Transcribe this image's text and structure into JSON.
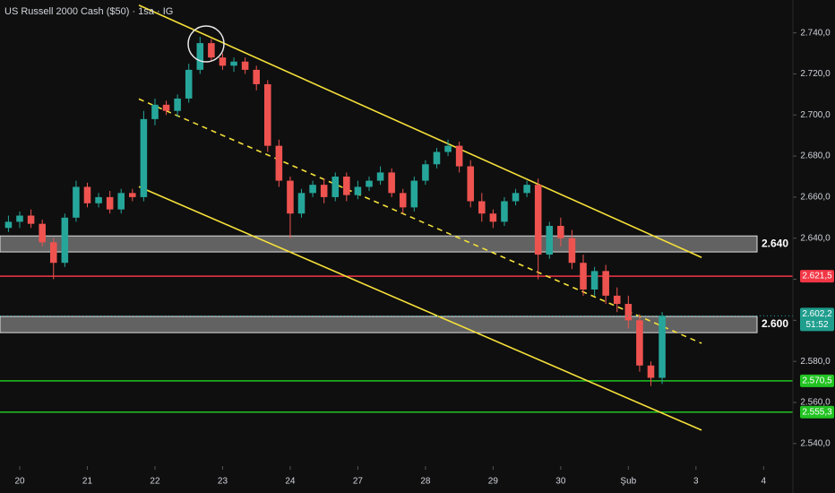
{
  "chart_data": {
    "type": "candlestick",
    "title": "US Russell 2000 Cash ($50) · 1sa · IG",
    "x": [
      -1,
      0,
      1,
      2,
      3,
      4,
      5,
      6,
      7,
      8,
      9,
      10,
      11,
      12,
      13,
      14,
      15,
      16,
      17,
      18,
      19,
      20,
      21,
      22,
      23,
      24,
      25,
      26,
      27,
      28,
      29,
      30,
      31,
      32,
      33,
      34,
      35,
      36,
      37,
      38,
      39,
      40,
      41,
      42,
      43,
      44,
      45,
      46,
      47,
      48,
      49,
      50,
      51,
      52,
      53,
      54,
      55,
      56,
      57
    ],
    "open": [
      2645,
      2648,
      2651,
      2647,
      2638,
      2628,
      2650,
      2665,
      2657,
      2660,
      2654,
      2662,
      2660,
      2698,
      2705,
      2702,
      2708,
      2722,
      2735,
      2728,
      2724,
      2726,
      2722,
      2715,
      2685,
      2668,
      2652,
      2662,
      2666,
      2660,
      2670,
      2661,
      2665,
      2668,
      2672,
      2662,
      2655,
      2668,
      2676,
      2682,
      2685,
      2675,
      2658,
      2652,
      2648,
      2658,
      2662,
      2666,
      2632,
      2646,
      2640,
      2628,
      2615,
      2624,
      2612,
      2608,
      2600,
      2578,
      2572
    ],
    "high": [
      2651,
      2653,
      2654,
      2649,
      2640,
      2652,
      2668,
      2667,
      2662,
      2663,
      2664,
      2664,
      2702,
      2708,
      2707,
      2710,
      2725,
      2738,
      2737,
      2730,
      2728,
      2728,
      2724,
      2717,
      2688,
      2670,
      2664,
      2668,
      2669,
      2672,
      2672,
      2668,
      2670,
      2675,
      2674,
      2664,
      2670,
      2678,
      2684,
      2688,
      2687,
      2678,
      2662,
      2654,
      2660,
      2664,
      2668,
      2669,
      2648,
      2650,
      2644,
      2632,
      2626,
      2627,
      2616,
      2612,
      2603,
      2580,
      2604
    ],
    "low": [
      2643,
      2645,
      2645,
      2636,
      2620,
      2626,
      2648,
      2655,
      2655,
      2652,
      2652,
      2658,
      2658,
      2695,
      2700,
      2699,
      2706,
      2720,
      2726,
      2722,
      2721,
      2720,
      2712,
      2682,
      2665,
      2640,
      2650,
      2660,
      2657,
      2658,
      2658,
      2659,
      2663,
      2666,
      2660,
      2652,
      2653,
      2666,
      2674,
      2680,
      2672,
      2655,
      2648,
      2645,
      2646,
      2656,
      2660,
      2620,
      2630,
      2636,
      2625,
      2612,
      2612,
      2608,
      2604,
      2596,
      2575,
      2568,
      2569
    ],
    "close": [
      2648,
      2651,
      2647,
      2638,
      2628,
      2650,
      2665,
      2657,
      2660,
      2654,
      2662,
      2660,
      2698,
      2705,
      2702,
      2708,
      2722,
      2735,
      2728,
      2724,
      2726,
      2722,
      2715,
      2685,
      2668,
      2652,
      2662,
      2666,
      2660,
      2670,
      2661,
      2665,
      2668,
      2672,
      2662,
      2655,
      2668,
      2676,
      2682,
      2685,
      2675,
      2658,
      2652,
      2648,
      2658,
      2662,
      2666,
      2632,
      2646,
      2640,
      2628,
      2615,
      2624,
      2612,
      2608,
      2600,
      2578,
      2572,
      2602.2
    ],
    "up_color": "#26a69a",
    "down_color": "#ef5350",
    "xlim": [
      -1.75,
      68.6
    ],
    "xticks": [
      {
        "value": 0,
        "label": "20"
      },
      {
        "value": 6,
        "label": "21"
      },
      {
        "value": 12,
        "label": "22"
      },
      {
        "value": 18,
        "label": "23"
      },
      {
        "value": 24,
        "label": "24"
      },
      {
        "value": 30,
        "label": "27"
      },
      {
        "value": 36,
        "label": "28"
      },
      {
        "value": 42,
        "label": "29"
      },
      {
        "value": 48,
        "label": "30"
      },
      {
        "value": 54,
        "label": "Şub"
      },
      {
        "value": 60,
        "label": "3"
      },
      {
        "value": 66,
        "label": "4"
      }
    ],
    "ylim": [
      2529,
      2756
    ],
    "yticks": [
      {
        "value": 2540,
        "label": "2.540,0"
      },
      {
        "value": 2560,
        "label": "2.560,0"
      },
      {
        "value": 2580,
        "label": "2.580,0"
      },
      {
        "value": 2600,
        "label": "2.600,0"
      },
      {
        "value": 2620,
        "label": "2.620,0"
      },
      {
        "value": 2640,
        "label": "2.640,0"
      },
      {
        "value": 2660,
        "label": "2.660,0"
      },
      {
        "value": 2680,
        "label": "2.680,0"
      },
      {
        "value": 2700,
        "label": "2.700,0"
      },
      {
        "value": 2720,
        "label": "2.720,0"
      },
      {
        "value": 2740,
        "label": "2.740,0"
      }
    ],
    "zones": [
      {
        "low": 2633.3,
        "high": 2641.1,
        "label": "2.640"
      },
      {
        "low": 2594,
        "high": 2601.9,
        "label": "2.600"
      }
    ],
    "levels": [
      {
        "value": 2621.5,
        "label": "2.621,5",
        "color": "#f23645"
      },
      {
        "value": 2570.5,
        "label": "2.570,5",
        "color": "#22c322"
      },
      {
        "value": 2555.3,
        "label": "2.555,3",
        "color": "#22c322"
      }
    ],
    "trendlines": [
      {
        "x": [
          10.57,
          60.5
        ],
        "y": [
          2753.5,
          2630.6
        ],
        "dashed": false
      },
      {
        "x": [
          10.57,
          60.5
        ],
        "y": [
          2707.8,
          2588.8
        ],
        "dashed": true
      },
      {
        "x": [
          10.57,
          60.5
        ],
        "y": [
          2665.1,
          2546.5
        ],
        "dashed": false
      }
    ],
    "trend_color": "#f5e03a",
    "last_price": {
      "value": 2602.2,
      "label": "2.602,2",
      "countdown": "51:52"
    }
  }
}
